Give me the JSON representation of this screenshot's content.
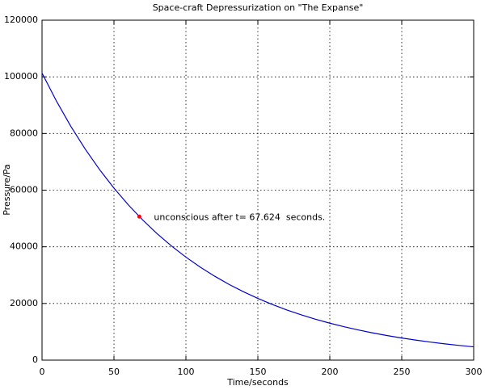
{
  "chart_data": {
    "type": "line",
    "title": "Space-craft Depressurization on \"The Expanse\"",
    "x_label": "Time/seconds",
    "y_label": "Pressure/Pa",
    "x": [
      0,
      10,
      20,
      30,
      40,
      50,
      60,
      70,
      80,
      90,
      100,
      110,
      120,
      130,
      140,
      150,
      160,
      170,
      180,
      190,
      200,
      210,
      220,
      230,
      240,
      250,
      260,
      270,
      280,
      290,
      300
    ],
    "series": [
      {
        "color": "#0000cc",
        "values": [
          101325,
          91460,
          82550,
          74510,
          67250,
          60700,
          54790,
          49450,
          44630,
          40280,
          36360,
          32810,
          29620,
          26730,
          24130,
          21780,
          19660,
          17740,
          16010,
          14450,
          13040,
          11770,
          10630,
          9590,
          8660,
          7810,
          7050,
          6360,
          5740,
          5180,
          4680
        ]
      }
    ],
    "marker": {
      "x": 67.624,
      "y": 50662,
      "color": "#ff0000"
    },
    "annotation": "unconscious after t= 67.624  seconds.",
    "xlim": [
      0,
      300
    ],
    "xticks": [
      0,
      50,
      100,
      150,
      200,
      250,
      300
    ],
    "ylim": [
      0,
      120000
    ],
    "yticks": [
      0,
      20000,
      40000,
      60000,
      80000,
      100000,
      120000
    ],
    "grid": true
  }
}
